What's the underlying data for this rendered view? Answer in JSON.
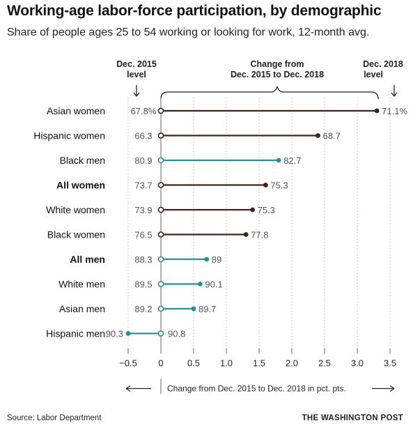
{
  "chart_data": {
    "type": "dot-arrow",
    "title": "Working-age labor-force participation, by demographic",
    "subtitle": "Share of people ages 25 to 54 working or looking for work, 12-month avg.",
    "column_labels": {
      "start": [
        "Dec. 2015",
        "level"
      ],
      "change": [
        "Change from",
        "Dec. 2015 to Dec. 2018"
      ],
      "end": [
        "Dec. 2018",
        "level"
      ]
    },
    "xlabel": "Change from Dec. 2015 to Dec. 2018 in pct. pts.",
    "xlim": [
      -0.5,
      3.5
    ],
    "xticks": [
      -0.5,
      0,
      0.5,
      1.0,
      1.5,
      2.0,
      2.5,
      3.0,
      3.5
    ],
    "xtick_labels": [
      "−0.5",
      "0",
      "0.5",
      "1.0",
      "1.5",
      "2.0",
      "2.5",
      "3.0",
      "3.5"
    ],
    "colors": {
      "women": "#3a2420",
      "men": "#2a8f8f"
    },
    "rows": [
      {
        "label": "Asian women",
        "bold": false,
        "group": "women",
        "start": "67.8%",
        "end": "71.1%",
        "change": 3.3
      },
      {
        "label": "Hispanic women",
        "bold": false,
        "group": "women",
        "start": "66.3",
        "end": "68.7",
        "change": 2.4
      },
      {
        "label": "Black men",
        "bold": false,
        "group": "men",
        "start": "80.9",
        "end": "82.7",
        "change": 1.8
      },
      {
        "label": "All women",
        "bold": true,
        "group": "women",
        "start": "73.7",
        "end": "75.3",
        "change": 1.6
      },
      {
        "label": "White women",
        "bold": false,
        "group": "women",
        "start": "73.9",
        "end": "75.3",
        "change": 1.4
      },
      {
        "label": "Black women",
        "bold": false,
        "group": "women",
        "start": "76.5",
        "end": "77.8",
        "change": 1.3
      },
      {
        "label": "All men",
        "bold": true,
        "group": "men",
        "start": "88.3",
        "end": "89",
        "change": 0.7
      },
      {
        "label": "White men",
        "bold": false,
        "group": "men",
        "start": "89.5",
        "end": "90.1",
        "change": 0.6
      },
      {
        "label": "Asian men",
        "bold": false,
        "group": "men",
        "start": "89.2",
        "end": "89.7",
        "change": 0.5
      },
      {
        "label": "Hispanic men",
        "bold": false,
        "group": "men",
        "start": "90.8",
        "end": "90.3",
        "change": -0.5
      }
    ]
  },
  "source": "Source: Labor Department",
  "credit": "THE WASHINGTON POST"
}
